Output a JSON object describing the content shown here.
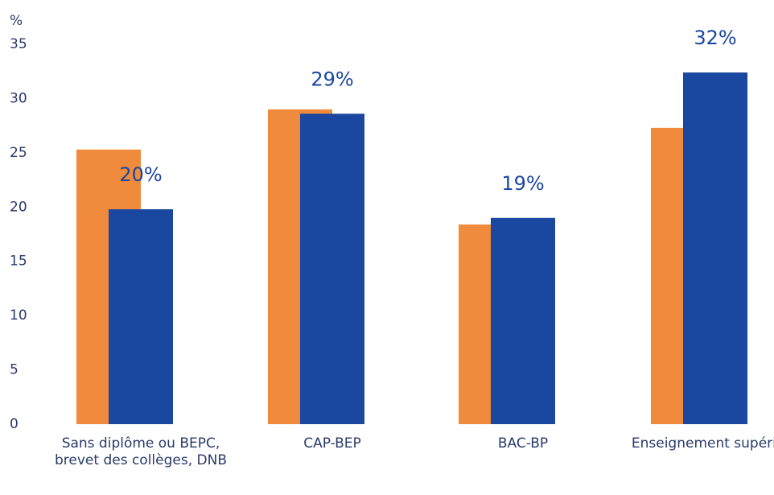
{
  "chart_data": {
    "type": "bar",
    "y_label": "%",
    "categories": [
      "Sans diplôme ou BEPC, brevet des collèges, DNB",
      "CAP-BEP",
      "BAC-BP",
      "Enseignement supérieur"
    ],
    "series": [
      {
        "color": "#f08a3c",
        "values": [
          25.3,
          29,
          18.4,
          27.3
        ]
      },
      {
        "color": "#1a47a0",
        "values": [
          19.8,
          28.6,
          19,
          32.4
        ],
        "value_labels": [
          "20%",
          "29%",
          "19%",
          "32%"
        ]
      }
    ],
    "ylim": [
      0,
      35
    ],
    "yticks": [
      0,
      5,
      10,
      15,
      20,
      25,
      30,
      35
    ],
    "grid": false
  }
}
